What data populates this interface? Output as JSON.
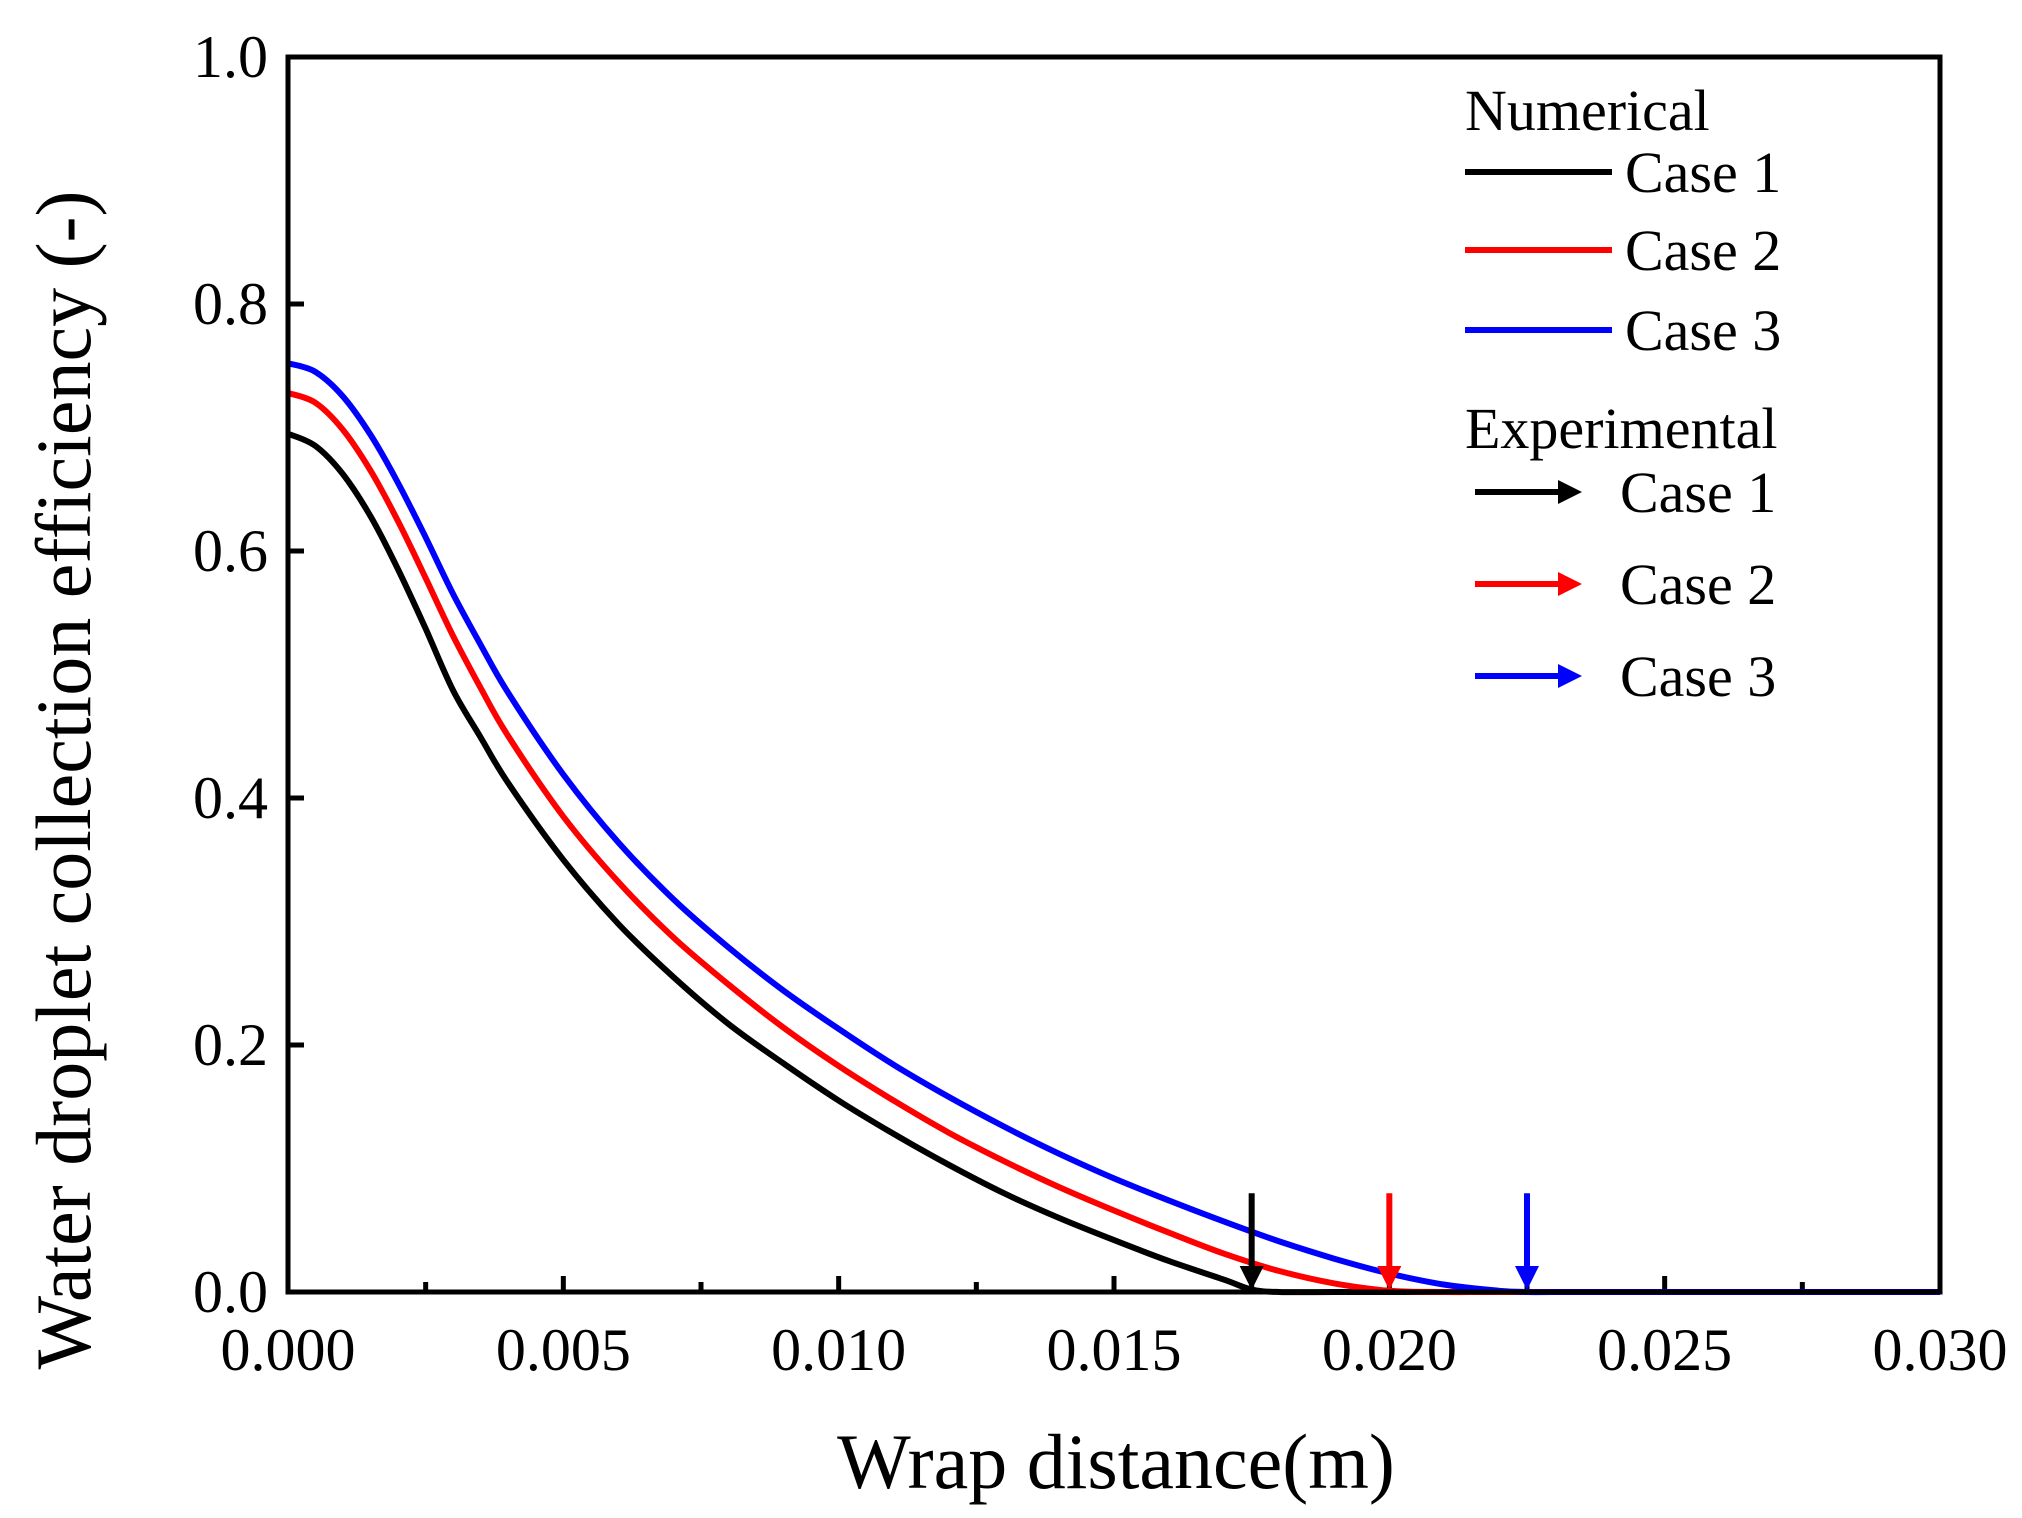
{
  "chart_data": {
    "type": "line",
    "title": "",
    "xlabel": "Wrap distance(m)",
    "ylabel": "Water droplet collection efficiency (-)",
    "xlim": [
      0.0,
      0.03
    ],
    "ylim": [
      0.0,
      1.0
    ],
    "x_ticks": [
      "0.000",
      "0.005",
      "0.010",
      "0.015",
      "0.020",
      "0.025",
      "0.030"
    ],
    "x_tick_values": [
      0.0,
      0.005,
      0.01,
      0.015,
      0.02,
      0.025,
      0.03
    ],
    "y_ticks": [
      "0.0",
      "0.2",
      "0.4",
      "0.6",
      "0.8",
      "1.0"
    ],
    "y_tick_values": [
      0.0,
      0.2,
      0.4,
      0.6,
      0.8,
      1.0
    ],
    "x_minor_ticks": [
      0.0025,
      0.0075,
      0.0125,
      0.0175,
      0.0225,
      0.0275
    ],
    "grid": false,
    "legend_position": "top-right",
    "legend": {
      "numerical_heading": "Numerical",
      "experimental_heading": "Experimental"
    },
    "series": [
      {
        "name": "Case 1",
        "group": "Numerical",
        "color": "#000000",
        "x": [
          0.0,
          0.0005,
          0.001,
          0.0015,
          0.002,
          0.0025,
          0.003,
          0.0035,
          0.004,
          0.005,
          0.006,
          0.007,
          0.008,
          0.009,
          0.01,
          0.011,
          0.012,
          0.013,
          0.014,
          0.015,
          0.016,
          0.017,
          0.0175,
          0.018,
          0.019,
          0.02,
          0.022,
          0.025,
          0.03
        ],
        "y": [
          0.695,
          0.685,
          0.662,
          0.628,
          0.585,
          0.537,
          0.487,
          0.449,
          0.412,
          0.35,
          0.298,
          0.255,
          0.217,
          0.185,
          0.155,
          0.128,
          0.103,
          0.08,
          0.06,
          0.042,
          0.025,
          0.01,
          0.002,
          0.0,
          0.0,
          0.0,
          0.0,
          0.0,
          0.0
        ]
      },
      {
        "name": "Case 2",
        "group": "Numerical",
        "color": "#ff0000",
        "x": [
          0.0,
          0.0005,
          0.001,
          0.0015,
          0.002,
          0.0025,
          0.003,
          0.0035,
          0.004,
          0.005,
          0.006,
          0.007,
          0.008,
          0.009,
          0.01,
          0.011,
          0.012,
          0.013,
          0.014,
          0.015,
          0.016,
          0.017,
          0.018,
          0.019,
          0.02,
          0.021,
          0.022,
          0.025,
          0.03
        ],
        "y": [
          0.728,
          0.72,
          0.698,
          0.665,
          0.624,
          0.578,
          0.531,
          0.489,
          0.45,
          0.385,
          0.332,
          0.287,
          0.249,
          0.214,
          0.183,
          0.155,
          0.129,
          0.106,
          0.085,
          0.066,
          0.048,
          0.031,
          0.017,
          0.007,
          0.001,
          0.0,
          0.0,
          0.0,
          0.0
        ]
      },
      {
        "name": "Case 3",
        "group": "Numerical",
        "color": "#0000ff",
        "x": [
          0.0,
          0.0005,
          0.001,
          0.0015,
          0.002,
          0.0025,
          0.003,
          0.0035,
          0.004,
          0.005,
          0.006,
          0.007,
          0.008,
          0.009,
          0.01,
          0.011,
          0.012,
          0.013,
          0.014,
          0.015,
          0.016,
          0.017,
          0.018,
          0.019,
          0.02,
          0.021,
          0.022,
          0.0225,
          0.023,
          0.025,
          0.03
        ],
        "y": [
          0.752,
          0.745,
          0.725,
          0.694,
          0.655,
          0.611,
          0.565,
          0.524,
          0.485,
          0.419,
          0.364,
          0.318,
          0.279,
          0.244,
          0.213,
          0.184,
          0.158,
          0.134,
          0.112,
          0.092,
          0.074,
          0.057,
          0.041,
          0.027,
          0.015,
          0.006,
          0.001,
          0.0,
          0.0,
          0.0,
          0.0
        ]
      }
    ],
    "experimental_markers": [
      {
        "name": "Case 1",
        "group": "Experimental",
        "color": "#000000",
        "x": 0.0175,
        "y_top": 0.08,
        "y_bottom": 0.0
      },
      {
        "name": "Case 2",
        "group": "Experimental",
        "color": "#ff0000",
        "x": 0.02,
        "y_top": 0.08,
        "y_bottom": 0.0
      },
      {
        "name": "Case 3",
        "group": "Experimental",
        "color": "#0000ff",
        "x": 0.0225,
        "y_top": 0.08,
        "y_bottom": 0.0
      }
    ]
  }
}
